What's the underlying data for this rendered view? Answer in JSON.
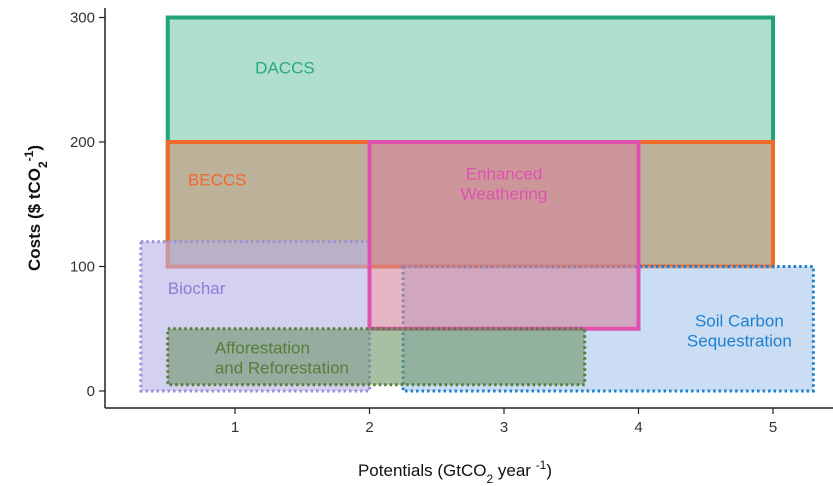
{
  "chart_data": {
    "type": "area",
    "xlabel": "Potentials (GtCO",
    "xlabel_sub": "2",
    "xlabel_tail": " year ",
    "xlabel_sup": "-1",
    "xlabel_close": ")",
    "ylabel": "Costs ($ tCO",
    "ylabel_sub": "2",
    "ylabel_sup": "-1",
    "ylabel_close": ")",
    "xlim": [
      0.3,
      5.3
    ],
    "ylim": [
      -8,
      300
    ],
    "x_ticks": [
      1,
      2,
      3,
      4,
      5
    ],
    "y_ticks": [
      0,
      100,
      200,
      300
    ],
    "grid": false,
    "regions": [
      {
        "name": "DACCS",
        "label": [
          "DACCS"
        ],
        "x": [
          0.5,
          5
        ],
        "y": [
          100,
          300
        ],
        "fill": "#7cc9ad",
        "stroke": "#22a37a",
        "dash": "solid",
        "label_color": "#2aa87e"
      },
      {
        "name": "BECCS",
        "label": [
          "BECCS"
        ],
        "x": [
          0.5,
          5
        ],
        "y": [
          100,
          200
        ],
        "fill": "#c79477",
        "stroke": "#f06a2a",
        "dash": "solid",
        "label_color": "#f06a2a"
      },
      {
        "name": "Biochar",
        "label": [
          "Biochar"
        ],
        "x": [
          0.3,
          2
        ],
        "y": [
          0,
          120
        ],
        "fill": "#b8b0e6",
        "stroke": "#9b8fe0",
        "dash": "dotted",
        "label_color": "#8a7fd6"
      },
      {
        "name": "Soil Carbon Sequestration",
        "label": [
          "Soil Carbon",
          "Sequestration"
        ],
        "x": [
          2.25,
          5.3
        ],
        "y": [
          0,
          100
        ],
        "fill": "#a6c6ea",
        "stroke": "#1e7fd1",
        "dash": "dotted",
        "label_color": "#1e7fd1"
      },
      {
        "name": "Enhanced Weathering",
        "label": [
          "Enhanced",
          "Weathering"
        ],
        "x": [
          2,
          4
        ],
        "y": [
          50,
          200
        ],
        "fill": "#d6849c",
        "stroke": "#e052b0",
        "dash": "solid",
        "label_color": "#e052b0"
      },
      {
        "name": "Afforestation and Reforestation",
        "label": [
          "Afforestation",
          "and Reforestation"
        ],
        "x": [
          0.5,
          3.6
        ],
        "y": [
          5,
          50
        ],
        "fill": "#6e9468",
        "stroke": "#557e3a",
        "dash": "dotted",
        "label_color": "#557e3a"
      }
    ]
  }
}
